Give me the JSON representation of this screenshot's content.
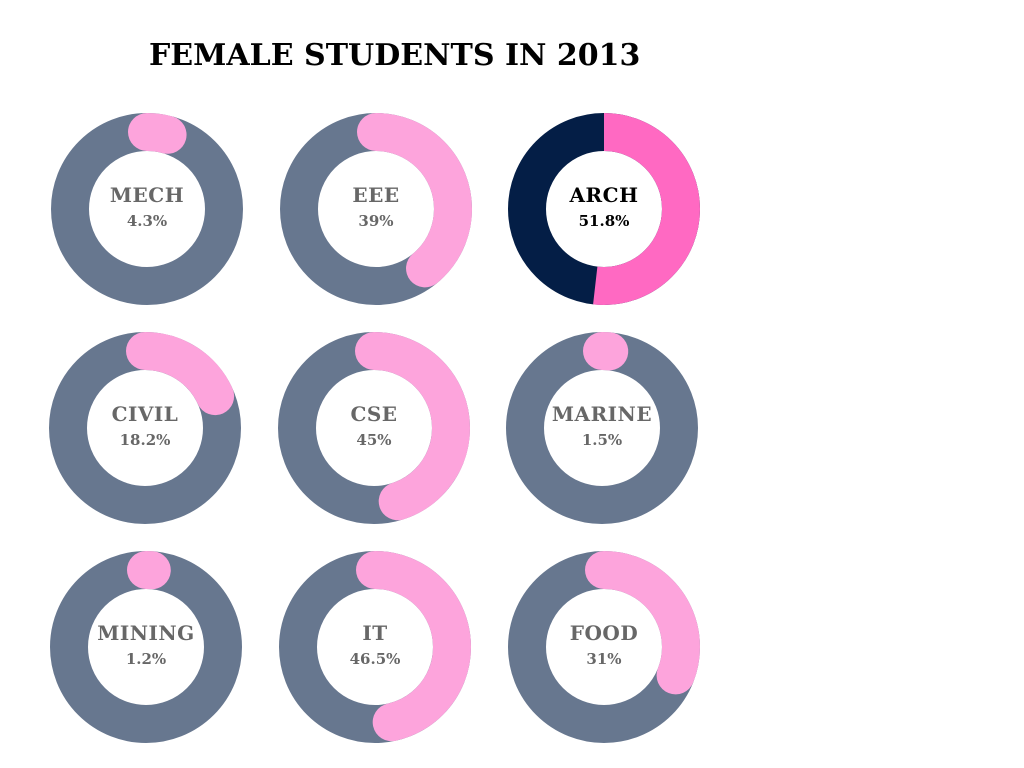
{
  "chart_data": {
    "type": "pie",
    "title": "FEMALE STUDENTS IN 2013",
    "items": [
      {
        "name": "MECH",
        "value": 4.3,
        "label": "4.3%",
        "highlighted": false
      },
      {
        "name": "EEE",
        "value": 39,
        "label": "39%",
        "highlighted": false
      },
      {
        "name": "ARCH",
        "value": 51.8,
        "label": "51.8%",
        "highlighted": true
      },
      {
        "name": "CIVIL",
        "value": 18.2,
        "label": "18.2%",
        "highlighted": false
      },
      {
        "name": "CSE",
        "value": 45,
        "label": "45%",
        "highlighted": false
      },
      {
        "name": "MARINE",
        "value": 1.5,
        "label": "1.5%",
        "highlighted": false
      },
      {
        "name": "MINING",
        "value": 1.2,
        "label": "1.2%",
        "highlighted": false
      },
      {
        "name": "IT",
        "value": 46.5,
        "label": "46.5%",
        "highlighted": false
      },
      {
        "name": "FOOD",
        "value": 31,
        "label": "31%",
        "highlighted": false
      }
    ],
    "colors": {
      "track": "#67778F",
      "fill": "#FDA4DC",
      "highlight_track": "#041E46",
      "highlight_fill": "#FF69C2",
      "label": "#676767",
      "highlight_label": "#000000"
    }
  }
}
